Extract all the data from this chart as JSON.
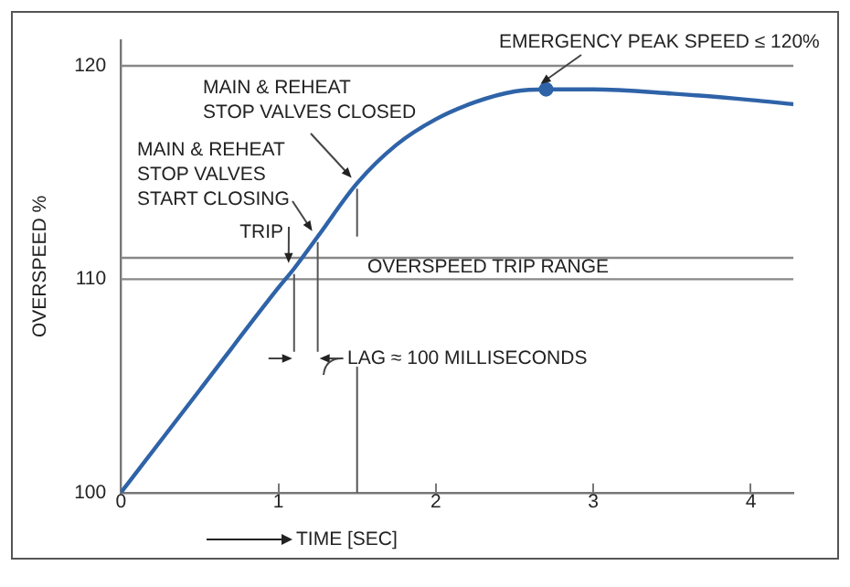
{
  "chart_data": {
    "type": "line",
    "xlabel": "TIME [SEC]",
    "ylabel": "OVERSPEED %",
    "xlim": [
      0,
      4.27
    ],
    "xticks": [
      0,
      1,
      2,
      3,
      4
    ],
    "ylim": [
      100,
      121.2
    ],
    "yticks": [
      100,
      110,
      120
    ],
    "legend": false,
    "line_style": "solid",
    "series": [
      {
        "color": "#2f63a8",
        "marker": "none",
        "x": [
          0,
          0.5,
          1.0,
          1.1,
          1.25,
          1.5,
          1.75,
          2.0,
          2.25,
          2.5,
          2.7,
          3.0,
          3.5,
          4.0,
          4.27
        ],
        "values": [
          100,
          104.8,
          109.6,
          110.5,
          112,
          114.5,
          116.3,
          117.5,
          118.3,
          118.8,
          118.9,
          118.9,
          118.7,
          118.4,
          118.2
        ]
      },
      {
        "type": "scatter",
        "color": "#2f63a8",
        "marker": "circle",
        "x": [
          2.7
        ],
        "values": [
          118.9
        ]
      }
    ],
    "ref_lines": [
      {
        "axis": "y",
        "value": 120,
        "color": "#888888"
      },
      {
        "axis": "y",
        "value": 111,
        "color": "#888888"
      },
      {
        "axis": "y",
        "value": 110,
        "label": "OVERSPEED TRIP RANGE",
        "color": "#888888"
      }
    ],
    "annotations": [
      {
        "text": "TRIP",
        "x": 1.1,
        "y": 110.5
      },
      {
        "text": "MAIN & REHEAT STOP VALVES START CLOSING",
        "x": 1.25,
        "y": 112
      },
      {
        "text": "MAIN & REHEAT STOP VALVES CLOSED",
        "x": 1.5,
        "y": 114.5
      },
      {
        "text": "EMERGENCY PEAK SPEED ≤ 120%",
        "x": 2.7,
        "y": 118.9
      },
      "LAG ≈ 100 MILLISECONDS"
    ]
  }
}
